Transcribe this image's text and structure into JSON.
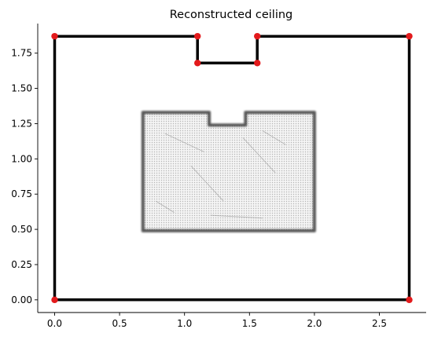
{
  "chart_data": {
    "type": "line",
    "title": "Reconstructed ceiling",
    "xlabel": "",
    "ylabel": "",
    "xlim": [
      -0.13,
      2.86
    ],
    "ylim": [
      -0.09,
      1.96
    ],
    "grid": false,
    "x_ticks": [
      0.0,
      0.5,
      1.0,
      1.5,
      2.0,
      2.5
    ],
    "x_tick_labels": [
      "0.0",
      "0.5",
      "1.0",
      "1.5",
      "2.0",
      "2.5"
    ],
    "y_ticks": [
      0.0,
      0.25,
      0.5,
      0.75,
      1.0,
      1.25,
      1.5,
      1.75
    ],
    "y_tick_labels": [
      "0.00",
      "0.25",
      "0.50",
      "0.75",
      "1.00",
      "1.25",
      "1.50",
      "1.75"
    ],
    "series": [
      {
        "kind": "outline",
        "color": "#000000",
        "closed": true,
        "points": [
          [
            0.0,
            0.0
          ],
          [
            0.0,
            1.87
          ],
          [
            1.1,
            1.87
          ],
          [
            1.1,
            1.68
          ],
          [
            1.56,
            1.68
          ],
          [
            1.56,
            1.87
          ],
          [
            2.73,
            1.87
          ],
          [
            2.73,
            0.0
          ]
        ]
      },
      {
        "kind": "corners",
        "color": "#e31a1c",
        "points": [
          [
            0.0,
            0.0
          ],
          [
            0.0,
            1.87
          ],
          [
            1.1,
            1.87
          ],
          [
            1.1,
            1.68
          ],
          [
            1.56,
            1.68
          ],
          [
            1.56,
            1.87
          ],
          [
            2.73,
            1.87
          ],
          [
            2.73,
            0.0
          ]
        ]
      }
    ],
    "background_image": {
      "depicts": "point-cloud-floor-plan",
      "color": "#3a3a3a",
      "extent_x": [
        0.68,
        2.0
      ],
      "extent_y": [
        0.49,
        1.33
      ],
      "notch": {
        "x": [
          1.19,
          1.47
        ],
        "y_top": 1.24
      }
    }
  }
}
